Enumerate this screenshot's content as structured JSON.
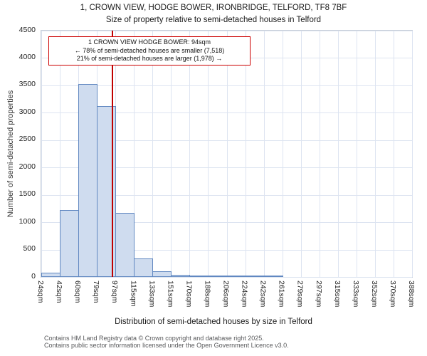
{
  "chart_data": {
    "type": "bar",
    "title": "1, CROWN VIEW, HODGE BOWER, IRONBRIDGE, TELFORD, TF8 7BF",
    "subtitle": "Size of property relative to semi-detached houses in Telford",
    "xlabel": "Distribution of semi-detached houses by size in Telford",
    "ylabel": "Number of semi-detached properties",
    "x_tick_labels": [
      "24sqm",
      "42sqm",
      "60sqm",
      "79sqm",
      "97sqm",
      "115sqm",
      "133sqm",
      "151sqm",
      "170sqm",
      "188sqm",
      "206sqm",
      "224sqm",
      "242sqm",
      "261sqm",
      "279sqm",
      "297sqm",
      "315sqm",
      "333sqm",
      "352sqm",
      "370sqm",
      "388sqm"
    ],
    "bin_edges_sqm": [
      24,
      42,
      60,
      79,
      97,
      115,
      133,
      151,
      170,
      188,
      206,
      224,
      242,
      261,
      279,
      297,
      315,
      333,
      352,
      370,
      388
    ],
    "values": [
      75,
      1220,
      3520,
      3120,
      1170,
      340,
      100,
      45,
      20,
      15,
      10,
      5,
      3,
      0,
      0,
      0,
      0,
      0,
      0,
      0
    ],
    "ylim": [
      0,
      4500
    ],
    "y_tick_step": 500,
    "grid": true,
    "bar_fill": "#cfdcef",
    "bar_stroke": "#6188c1",
    "marker": {
      "value_sqm": 94,
      "color": "#c00000",
      "label_lines": [
        "1 CROWN VIEW HODGE BOWER: 94sqm",
        "← 78% of semi-detached houses are smaller (7,518)",
        "21% of semi-detached houses are larger (1,978) →"
      ]
    }
  },
  "footer": {
    "line1": "Contains HM Land Registry data © Crown copyright and database right 2025.",
    "line2": "Contains public sector information licensed under the Open Government Licence v3.0."
  }
}
